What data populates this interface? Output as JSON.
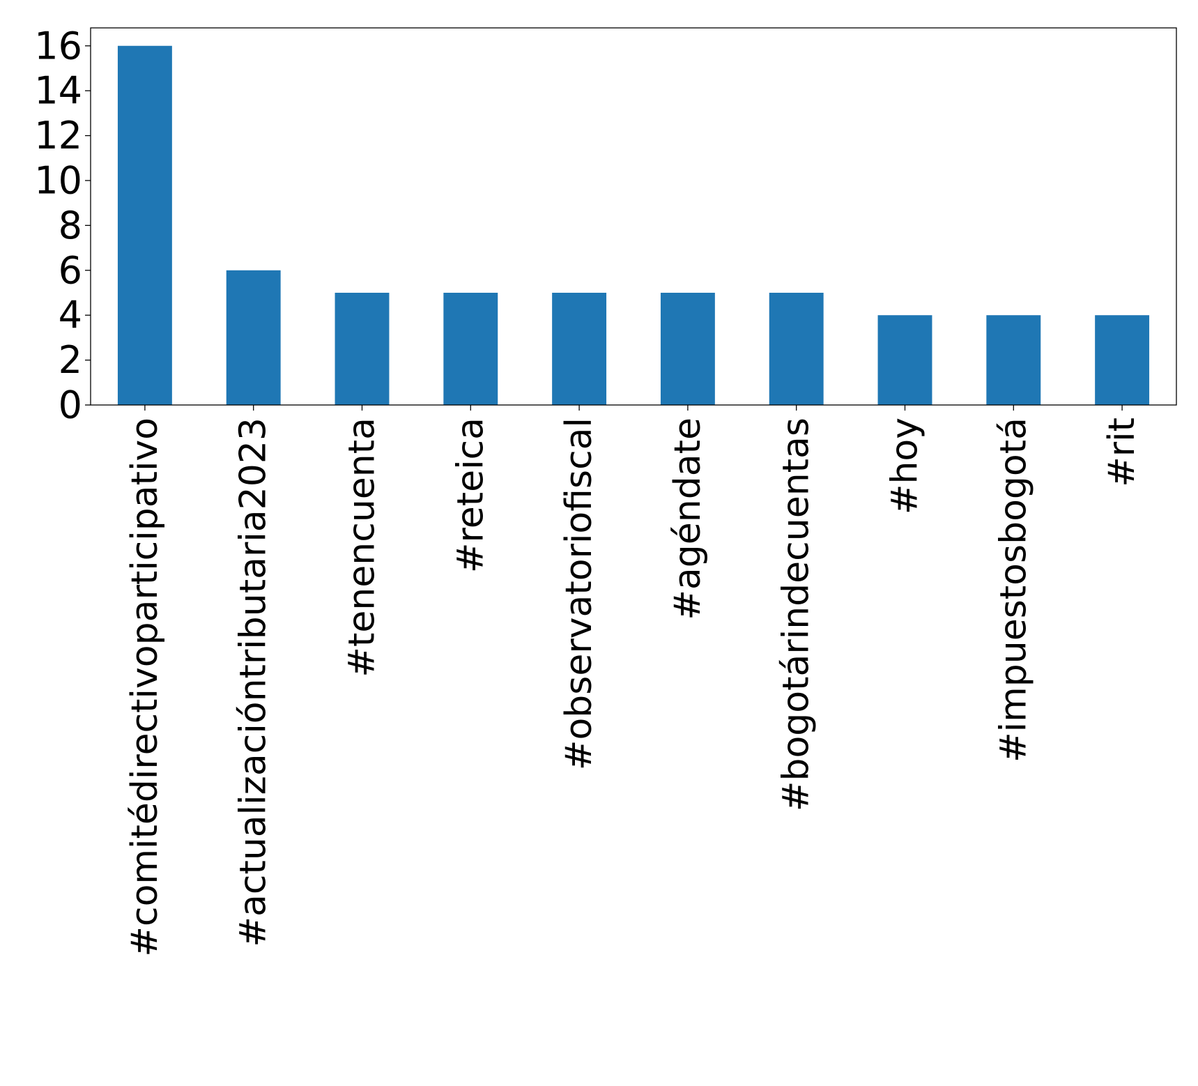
{
  "chart_data": {
    "type": "bar",
    "title": "",
    "xlabel": "",
    "ylabel": "",
    "categories": [
      "#comitédirectivoparticipativo",
      "#actualizacióntributaria2023",
      "#tenencuenta",
      "#reteica",
      "#observatoriofiscal",
      "#agéndate",
      "#bogotárindecuentas",
      "#hoy",
      "#impuestosbogotá",
      "#rit"
    ],
    "values": [
      16,
      6,
      5,
      5,
      5,
      5,
      5,
      4,
      4,
      4
    ],
    "ylim": [
      0,
      16.8
    ],
    "yticks": [
      0,
      2,
      4,
      6,
      8,
      10,
      12,
      14,
      16
    ],
    "ytick_labels": [
      "0",
      "2",
      "4",
      "6",
      "8",
      "10",
      "12",
      "14",
      "16"
    ],
    "bar_color": "#1f77b4",
    "grid": false,
    "legend": "none"
  }
}
